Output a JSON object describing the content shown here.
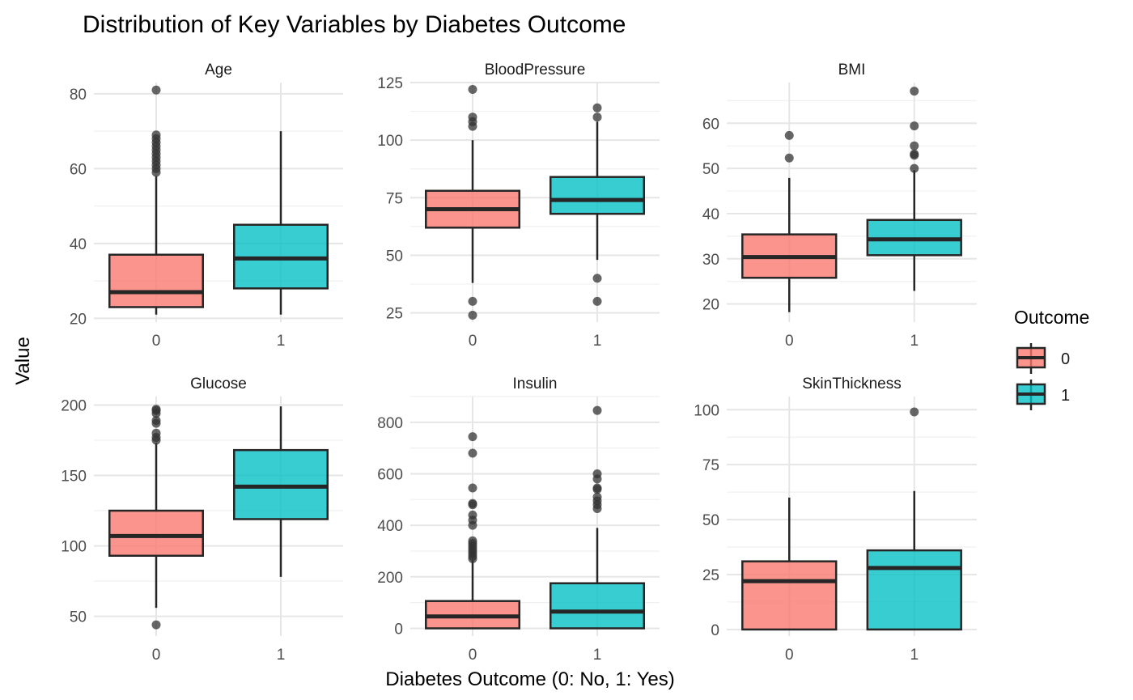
{
  "chart_data": {
    "type": "boxplot",
    "title": "Distribution of Key Variables by Diabetes Outcome",
    "xlabel": "Diabetes Outcome (0: No, 1: Yes)",
    "ylabel": "Value",
    "categories": [
      "0",
      "1"
    ],
    "legend": {
      "title": "Outcome",
      "position": "right",
      "entries": [
        {
          "label": "0",
          "color": "#F8766D"
        },
        {
          "label": "1",
          "color": "#00BFC4"
        }
      ]
    },
    "grid": true,
    "panels": [
      {
        "name": "Age",
        "ylim": [
          19,
          83
        ],
        "yticks": [
          20,
          40,
          60,
          80
        ],
        "boxes": [
          {
            "category": "0",
            "min": 21,
            "q1": 23,
            "median": 27,
            "q3": 37,
            "max": 58,
            "outliers": [
              59,
              60,
              61,
              62,
              63,
              64,
              65,
              66,
              67,
              68,
              69,
              81
            ]
          },
          {
            "category": "1",
            "min": 21,
            "q1": 28,
            "median": 36,
            "q3": 45,
            "max": 70,
            "outliers": []
          }
        ]
      },
      {
        "name": "BloodPressure",
        "ylim": [
          21,
          125
        ],
        "yticks": [
          25,
          50,
          75,
          100,
          125
        ],
        "boxes": [
          {
            "category": "0",
            "min": 38,
            "q1": 62,
            "median": 70,
            "q3": 78,
            "max": 100,
            "outliers": [
              24,
              30,
              106,
              108,
              110,
              122
            ]
          },
          {
            "category": "1",
            "min": 48,
            "q1": 68,
            "median": 74,
            "q3": 84,
            "max": 108,
            "outliers": [
              30,
              40,
              110,
              114
            ]
          }
        ]
      },
      {
        "name": "BMI",
        "ylim": [
          16,
          69
        ],
        "yticks": [
          20,
          30,
          40,
          50,
          60
        ],
        "boxes": [
          {
            "category": "0",
            "min": 18.2,
            "q1": 25.8,
            "median": 30.4,
            "q3": 35.4,
            "max": 47.9,
            "outliers": [
              52.3,
              57.3
            ]
          },
          {
            "category": "1",
            "min": 22.9,
            "q1": 30.8,
            "median": 34.3,
            "q3": 38.6,
            "max": 49.6,
            "outliers": [
              50,
              52.9,
              53.2,
              55,
              59.4,
              67.1
            ]
          }
        ]
      },
      {
        "name": "Glucose",
        "ylim": [
          36,
          206
        ],
        "yticks": [
          50,
          100,
          150,
          200
        ],
        "boxes": [
          {
            "category": "0",
            "min": 56,
            "q1": 93,
            "median": 107,
            "q3": 125,
            "max": 173,
            "outliers": [
              44,
              175,
              177,
              180,
              187,
              189,
              194,
              196,
              197
            ]
          },
          {
            "category": "1",
            "min": 78,
            "q1": 119,
            "median": 142,
            "q3": 168,
            "max": 199,
            "outliers": []
          }
        ]
      },
      {
        "name": "Insulin",
        "ylim": [
          -30,
          900
        ],
        "yticks": [
          0,
          200,
          400,
          600,
          800
        ],
        "boxes": [
          {
            "category": "0",
            "min": 0,
            "q1": 0,
            "median": 46,
            "q3": 106,
            "max": 265,
            "outliers": [
              270,
              280,
              290,
              300,
              310,
              320,
              330,
              340,
              400,
              420,
              440,
              480,
              485,
              545,
              680,
              744
            ]
          },
          {
            "category": "1",
            "min": 0,
            "q1": 0,
            "median": 65,
            "q3": 175,
            "max": 390,
            "outliers": [
              465,
              480,
              495,
              510,
              540,
              545,
              580,
              600,
              846
            ]
          }
        ]
      },
      {
        "name": "SkinThickness",
        "ylim": [
          -3,
          106
        ],
        "yticks": [
          0,
          25,
          50,
          75,
          100
        ],
        "boxes": [
          {
            "category": "0",
            "min": 0,
            "q1": 0,
            "median": 22,
            "q3": 31,
            "max": 60,
            "outliers": []
          },
          {
            "category": "1",
            "min": 0,
            "q1": 0,
            "median": 28,
            "q3": 36,
            "max": 63,
            "outliers": [
              99
            ]
          }
        ]
      }
    ]
  }
}
